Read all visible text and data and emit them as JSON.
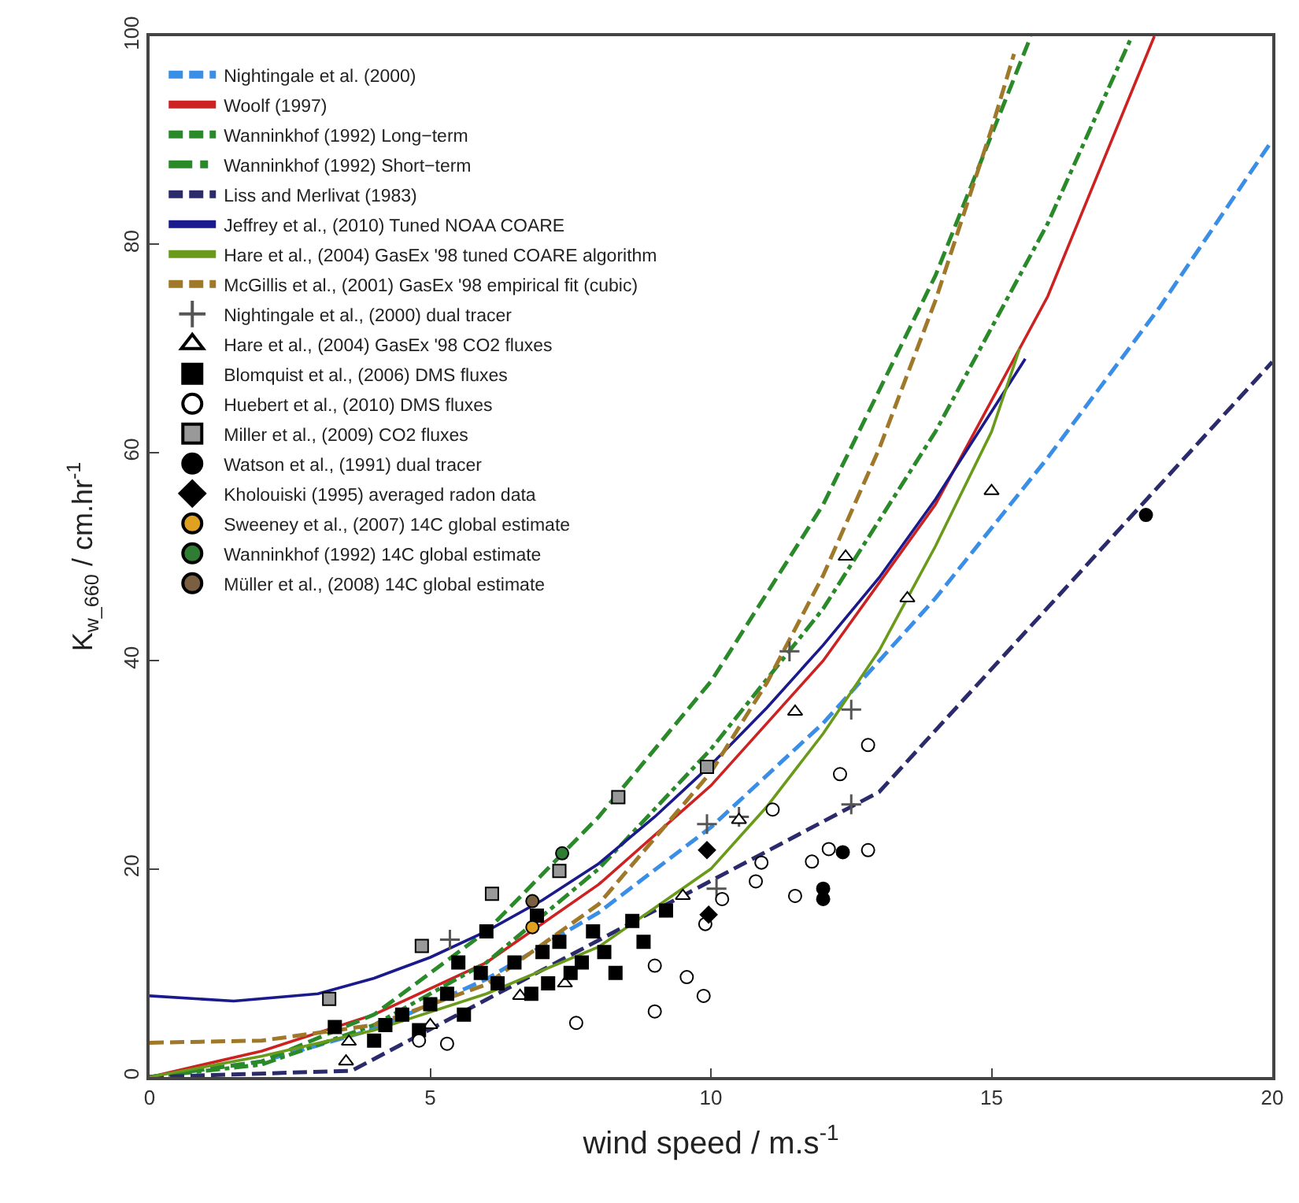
{
  "chart_data": {
    "type": "line",
    "xlabel": "wind speed / m.s$^{-1}$",
    "ylabel": "K$_{w_660}$ / cm.hr$^{-1}$",
    "xlim": [
      0,
      20
    ],
    "ylim": [
      0,
      100
    ],
    "xticks": [
      0,
      5,
      10,
      15,
      20
    ],
    "yticks": [
      0,
      20,
      40,
      60,
      80,
      100
    ],
    "legend": "top left",
    "series": [
      {
        "name": "Nightingale et al. (2000)",
        "line_style": "dashed",
        "color": "#3a8ee6",
        "x": [
          0,
          2,
          4,
          6,
          8,
          10,
          12,
          14,
          16,
          18,
          20
        ],
        "values": [
          0,
          1.5,
          4.6,
          9.4,
          15.8,
          24,
          34,
          46,
          59.5,
          74,
          90
        ]
      },
      {
        "name": "Woolf (1997)",
        "line_style": "solid",
        "color": "#cc2222",
        "x": [
          0,
          2,
          4,
          6,
          8,
          10,
          12,
          14,
          16,
          17.9
        ],
        "values": [
          0,
          2.5,
          6,
          11,
          18.5,
          28,
          40,
          55,
          75,
          100
        ]
      },
      {
        "name": "Wanninkhof (1992) Long−term",
        "line_style": "dashed",
        "color": "#2a8a2a",
        "x": [
          0,
          2,
          4,
          6,
          8,
          10,
          12,
          14,
          15.7
        ],
        "values": [
          0,
          1.5,
          6,
          14,
          25,
          38,
          55,
          77,
          100
        ]
      },
      {
        "name": "Wanninkhof (1992) Short−term",
        "line_style": "dashdot",
        "color": "#2a8a2a",
        "x": [
          0,
          2,
          4,
          6,
          8,
          10,
          12,
          14,
          16,
          17.5
        ],
        "values": [
          0,
          1.2,
          5,
          11,
          20,
          31.5,
          45,
          62,
          82,
          100
        ]
      },
      {
        "name": "Liss and Merlivat (1983)",
        "line_style": "dashed",
        "color": "#2b2b6b",
        "x": [
          0,
          3.6,
          13,
          20
        ],
        "values": [
          0,
          0.6,
          27.4,
          68.7
        ]
      },
      {
        "name": "Jeffrey et al., (2010) Tuned NOAA COARE",
        "line_style": "solid",
        "color": "#1a1a8c",
        "x": [
          0,
          1.5,
          3,
          4,
          5,
          6,
          7,
          8,
          9,
          10,
          11,
          12,
          13,
          14,
          15.6
        ],
        "values": [
          7.8,
          7.3,
          8,
          9.5,
          11.5,
          14,
          17,
          20.5,
          25,
          30,
          35.5,
          41.5,
          48,
          55.5,
          69
        ]
      },
      {
        "name": "Hare et al., (2004) GasEx '98 tuned COARE algorithm",
        "line_style": "solid",
        "color": "#6a9a1a",
        "x": [
          0,
          2,
          4,
          6,
          8,
          10,
          11,
          12,
          13,
          14,
          15,
          15.5
        ],
        "values": [
          0,
          2,
          4.5,
          8,
          12.5,
          20,
          26,
          33,
          41,
          51,
          62,
          70
        ]
      },
      {
        "name": "McGillis et al., (2001) GasEx '98 empirical fit (cubic)",
        "line_style": "dashed",
        "color": "#a0782a",
        "x": [
          0,
          2,
          4,
          6,
          8,
          10,
          11,
          12,
          13,
          14,
          15,
          15.4
        ],
        "values": [
          3.3,
          3.5,
          5,
          8.9,
          16.6,
          29.3,
          37.9,
          48.2,
          60.4,
          74.6,
          91.1,
          98.3
        ]
      },
      {
        "name": "Nightingale et al., (2000) dual tracer",
        "type": "scatter",
        "marker": "cross",
        "color": "#555555",
        "x": [
          5.35,
          9.93,
          11.4,
          12.5,
          12.5,
          10.1,
          10.5
        ],
        "values": [
          13.2,
          24.3,
          40.9,
          35.3,
          26.2,
          18.1,
          25
        ]
      },
      {
        "name": "Hare et al., (2004) GasEx '98 CO2 fluxes",
        "type": "scatter",
        "marker": "triangle",
        "color": "#ffffff",
        "x": [
          3.5,
          3.55,
          5.0,
          6.6,
          7.4,
          9.5,
          10.5,
          11.5,
          12.4,
          13.5,
          15
        ],
        "values": [
          1.5,
          3.4,
          5,
          7.8,
          9,
          17.4,
          24.7,
          35.1,
          50,
          46,
          56.3
        ]
      },
      {
        "name": "Blomquist et al., (2006) DMS fluxes",
        "type": "scatter",
        "marker": "square",
        "color": "#000000",
        "x": [
          3.3,
          4,
          4.2,
          4.5,
          4.8,
          5,
          5.3,
          5.5,
          5.6,
          5.9,
          6,
          6.2,
          6.5,
          6.8,
          6.9,
          7,
          7.1,
          7.3,
          7.5,
          7.7,
          7.9,
          8.1,
          8.3,
          8.6,
          8.8,
          9.2
        ],
        "values": [
          4.8,
          3.5,
          5,
          6,
          4.5,
          7,
          8,
          11,
          6,
          10,
          14,
          9,
          11,
          8,
          15.5,
          12,
          9,
          13,
          10,
          11,
          14,
          12,
          10,
          15,
          13,
          16
        ]
      },
      {
        "name": "Huebert et al., (2010) DMS fluxes",
        "type": "scatter",
        "marker": "circle",
        "color": "#ffffff",
        "x": [
          4.8,
          5.3,
          7.6,
          9.0,
          9.57,
          9.87,
          9.0,
          11.5,
          11.8,
          12.1,
          12.8,
          12.8,
          12.3,
          11.1,
          10.9,
          10.8,
          10.2,
          9.9
        ],
        "values": [
          3.5,
          3.2,
          5.2,
          10.7,
          9.6,
          7.8,
          6.3,
          17.4,
          20.7,
          21.9,
          21.8,
          31.9,
          29.1,
          25.7,
          20.6,
          18.8,
          17.1,
          14.7
        ]
      },
      {
        "name": "Miller et al., (2009) CO2 fluxes",
        "type": "scatter",
        "marker": "square",
        "color": "#999999",
        "x": [
          3.2,
          4.85,
          6.1,
          7.3,
          8.35,
          9.93
        ],
        "values": [
          7.5,
          12.6,
          17.6,
          19.8,
          26.9,
          29.8
        ]
      },
      {
        "name": "Watson et al., (1991) dual tracer",
        "type": "scatter",
        "marker": "circle",
        "color": "#000000",
        "x": [
          17.75,
          12.0,
          12.0,
          12.35
        ],
        "values": [
          54,
          18.1,
          17.1,
          21.6
        ]
      },
      {
        "name": "Kholouiski (1995) averaged radon data",
        "type": "scatter",
        "marker": "diamond",
        "color": "#000000",
        "x": [
          9.93,
          9.96
        ],
        "values": [
          21.8,
          15.6
        ]
      },
      {
        "name": "Sweeney et al., (2007) 14C global estimate",
        "type": "scatter",
        "marker": "circle",
        "color": "#e0a020",
        "x": [
          6.82
        ],
        "values": [
          14.4
        ]
      },
      {
        "name": "Wanninkhof (1992) 14C global estimate",
        "type": "scatter",
        "marker": "circle",
        "color": "#2e7d32",
        "x": [
          7.35
        ],
        "values": [
          21.5
        ]
      },
      {
        "name": "Müller et al., (2008) 14C global estimate",
        "type": "scatter",
        "marker": "circle",
        "color": "#7a6040",
        "x": [
          6.82
        ],
        "values": [
          16.9
        ]
      }
    ]
  }
}
